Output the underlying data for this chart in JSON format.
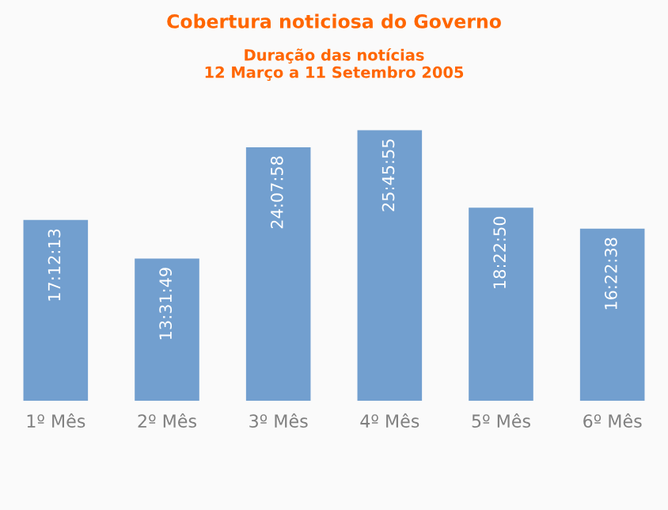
{
  "chart_data": {
    "type": "bar",
    "title": "Cobertura noticiosa do Governo",
    "subtitle": "Duração das notícias\n12 Março a 11 Setembro 2005",
    "categories": [
      "1º Mês",
      "2º Mês",
      "3º Mês",
      "4º Mês",
      "5º Mês",
      "6º Mês"
    ],
    "values": [
      17.2036,
      13.5303,
      24.1328,
      25.7653,
      18.3806,
      16.3772
    ],
    "value_labels": [
      "17:12:13",
      "13:31:49",
      "24:07:58",
      "25:45:55",
      "18:22:50",
      "16:22:38"
    ],
    "color": "#729fcf",
    "grid": false,
    "legend": false
  }
}
